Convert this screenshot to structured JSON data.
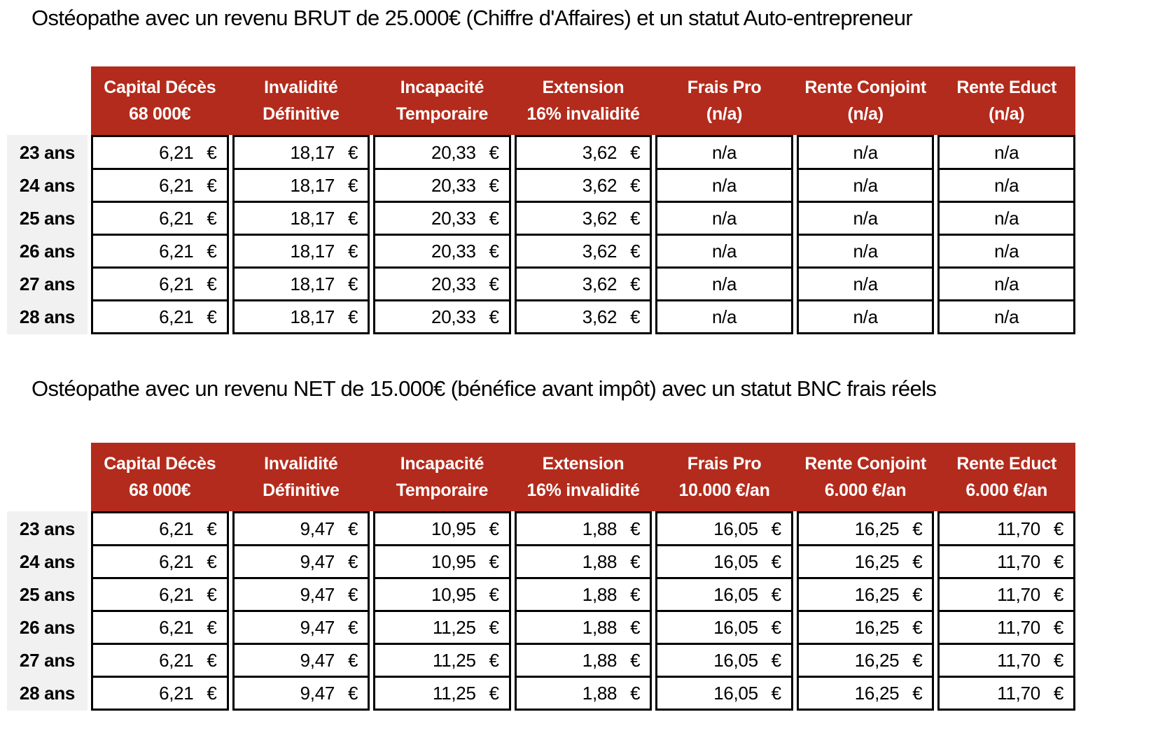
{
  "colors": {
    "header_bg": "#B32B1C",
    "header_text": "#FFFFFF",
    "label_bg": "#F1F1F1",
    "cell_border": "#000000",
    "text": "#000000"
  },
  "tables": [
    {
      "title": "Ostéopathe avec un revenu BRUT de 25.000€ (Chiffre d'Affaires) et un statut Auto-entrepreneur",
      "columns": [
        {
          "line1": "Capital Décès",
          "line2": "68 000€"
        },
        {
          "line1": "Invalidité",
          "line2": "Définitive"
        },
        {
          "line1": "Incapacité",
          "line2": "Temporaire"
        },
        {
          "line1": "Extension",
          "line2": "16% invalidité"
        },
        {
          "line1": "Frais Pro",
          "line2": "(n/a)"
        },
        {
          "line1": "Rente Conjoint",
          "line2": "(n/a)"
        },
        {
          "line1": "Rente Educt",
          "line2": "(n/a)"
        }
      ],
      "rows": [
        {
          "label": "23 ans",
          "values": [
            "6,21 €",
            "18,17 €",
            "20,33 €",
            "3,62 €",
            "n/a",
            "n/a",
            "n/a"
          ]
        },
        {
          "label": "24 ans",
          "values": [
            "6,21 €",
            "18,17 €",
            "20,33 €",
            "3,62 €",
            "n/a",
            "n/a",
            "n/a"
          ]
        },
        {
          "label": "25 ans",
          "values": [
            "6,21 €",
            "18,17 €",
            "20,33 €",
            "3,62 €",
            "n/a",
            "n/a",
            "n/a"
          ]
        },
        {
          "label": "26 ans",
          "values": [
            "6,21 €",
            "18,17 €",
            "20,33 €",
            "3,62 €",
            "n/a",
            "n/a",
            "n/a"
          ]
        },
        {
          "label": "27 ans",
          "values": [
            "6,21 €",
            "18,17 €",
            "20,33 €",
            "3,62 €",
            "n/a",
            "n/a",
            "n/a"
          ]
        },
        {
          "label": "28 ans",
          "values": [
            "6,21 €",
            "18,17 €",
            "20,33 €",
            "3,62 €",
            "n/a",
            "n/a",
            "n/a"
          ]
        }
      ]
    },
    {
      "title": "Ostéopathe avec un revenu NET de 15.000€ (bénéfice avant impôt) avec un statut BNC frais réels",
      "columns": [
        {
          "line1": "Capital Décès",
          "line2": "68 000€"
        },
        {
          "line1": "Invalidité",
          "line2": "Définitive"
        },
        {
          "line1": "Incapacité",
          "line2": "Temporaire"
        },
        {
          "line1": "Extension",
          "line2": "16% invalidité"
        },
        {
          "line1": "Frais Pro",
          "line2": "10.000 €/an"
        },
        {
          "line1": "Rente Conjoint",
          "line2": "6.000 €/an"
        },
        {
          "line1": "Rente Educt",
          "line2": "6.000 €/an"
        }
      ],
      "rows": [
        {
          "label": "23 ans",
          "values": [
            "6,21 €",
            "9,47 €",
            "10,95 €",
            "1,88 €",
            "16,05 €",
            "16,25 €",
            "11,70 €"
          ]
        },
        {
          "label": "24 ans",
          "values": [
            "6,21 €",
            "9,47 €",
            "10,95 €",
            "1,88 €",
            "16,05 €",
            "16,25 €",
            "11,70 €"
          ]
        },
        {
          "label": "25 ans",
          "values": [
            "6,21 €",
            "9,47 €",
            "10,95 €",
            "1,88 €",
            "16,05 €",
            "16,25 €",
            "11,70 €"
          ]
        },
        {
          "label": "26 ans",
          "values": [
            "6,21 €",
            "9,47 €",
            "11,25 €",
            "1,88 €",
            "16,05 €",
            "16,25 €",
            "11,70 €"
          ]
        },
        {
          "label": "27 ans",
          "values": [
            "6,21 €",
            "9,47 €",
            "11,25 €",
            "1,88 €",
            "16,05 €",
            "16,25 €",
            "11,70 €"
          ]
        },
        {
          "label": "28 ans",
          "values": [
            "6,21 €",
            "9,47 €",
            "11,25 €",
            "1,88 €",
            "16,05 €",
            "16,25 €",
            "11,70 €"
          ]
        }
      ]
    }
  ]
}
